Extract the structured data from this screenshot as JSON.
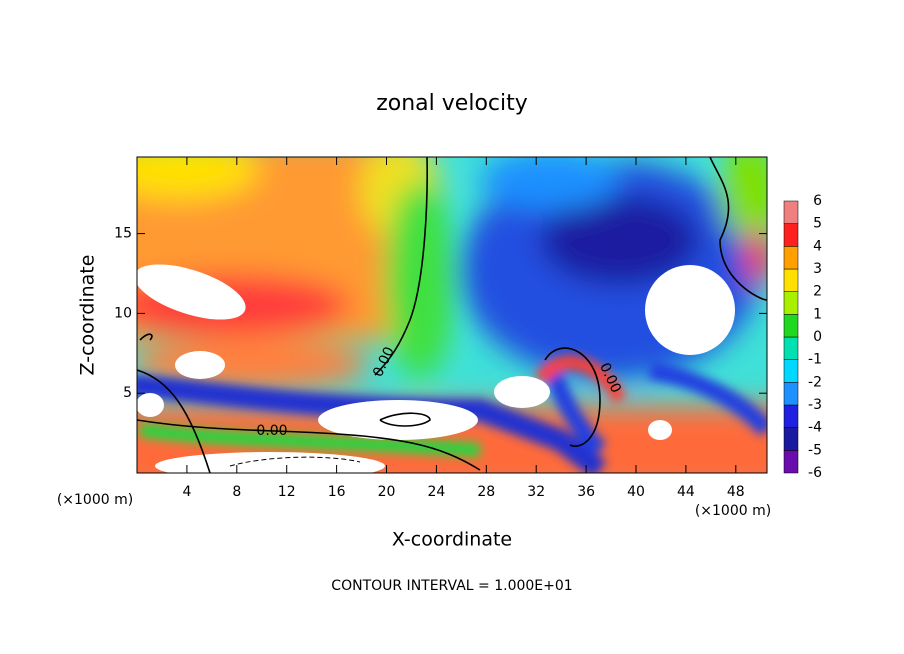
{
  "chart_data": {
    "type": "contour",
    "title": "zonal velocity",
    "x_label": "X-coordinate",
    "y_label": "Z-coordinate",
    "x_units": [
      "(×1000 m)",
      "(×1000 m)"
    ],
    "footer": "CONTOUR INTERVAL = 1.000E+01",
    "contour_labels": [
      "0.00",
      "0.00",
      "0.00"
    ],
    "xlim": [
      0,
      50.5
    ],
    "xticks": [
      4,
      8,
      12,
      16,
      20,
      24,
      28,
      32,
      36,
      40,
      44,
      48
    ],
    "ylim": [
      0,
      19.8
    ],
    "yticks": [
      5,
      10,
      15
    ],
    "colorbar": {
      "levels": [
        -6,
        -5,
        -4,
        -3,
        -2,
        -1,
        0,
        1,
        2,
        3,
        4,
        5,
        6
      ],
      "colors": [
        "#6a0dad",
        "#1a1aa0",
        "#2020e0",
        "#1e90ff",
        "#00d8ff",
        "#00e0b0",
        "#20d820",
        "#a8f000",
        "#ffe000",
        "#ffa000",
        "#ff2020",
        "#f08080"
      ]
    }
  }
}
